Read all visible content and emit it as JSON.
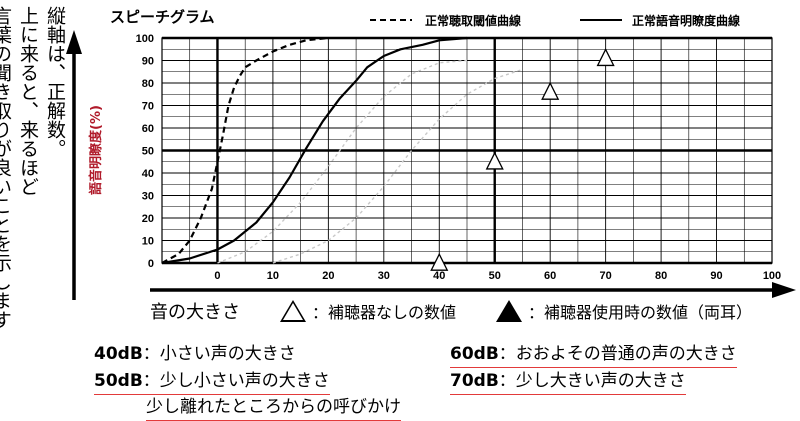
{
  "side_note": {
    "line1": "縦軸は、正解数。",
    "line2": "上に来ると、来るほど",
    "line3": "言葉の聞き取りが良いことを示します"
  },
  "chart_data": {
    "type": "line",
    "title": "スピーチグラム",
    "ylabel": "語音明瞭度(%)",
    "xlabel": "音の大きさ",
    "xlim": [
      -10,
      100
    ],
    "ylim": [
      0,
      100
    ],
    "x_ticks": [
      0,
      10,
      20,
      30,
      40,
      50,
      60,
      70,
      80,
      90,
      100
    ],
    "y_ticks": [
      0,
      10,
      20,
      30,
      40,
      50,
      60,
      70,
      80,
      90,
      100
    ],
    "grid": true,
    "legend_position": "top",
    "series": [
      {
        "name": "正常聴取閾値曲線",
        "style": "dashed",
        "points": [
          [
            -10,
            0
          ],
          [
            -7,
            4
          ],
          [
            -5,
            10
          ],
          [
            -3,
            20
          ],
          [
            -1,
            33
          ],
          [
            0,
            45
          ],
          [
            1,
            57
          ],
          [
            2,
            70
          ],
          [
            3,
            78
          ],
          [
            4,
            83
          ],
          [
            5,
            87
          ],
          [
            7,
            90
          ],
          [
            10,
            94
          ],
          [
            13,
            97
          ],
          [
            16,
            99
          ],
          [
            20,
            100
          ]
        ]
      },
      {
        "name": "正常語音明瞭度曲線",
        "style": "solid",
        "points": [
          [
            -10,
            0
          ],
          [
            -5,
            2
          ],
          [
            0,
            6
          ],
          [
            3,
            10
          ],
          [
            7,
            18
          ],
          [
            10,
            27
          ],
          [
            13,
            38
          ],
          [
            16,
            51
          ],
          [
            19,
            63
          ],
          [
            22,
            73
          ],
          [
            25,
            81
          ],
          [
            27,
            87
          ],
          [
            30,
            92
          ],
          [
            33,
            95
          ],
          [
            37,
            97
          ],
          [
            40,
            99
          ],
          [
            45,
            100
          ]
        ]
      },
      {
        "name": "",
        "style": "faint",
        "points": [
          [
            0,
            0
          ],
          [
            5,
            5
          ],
          [
            10,
            14
          ],
          [
            15,
            27
          ],
          [
            20,
            43
          ],
          [
            25,
            60
          ],
          [
            30,
            74
          ],
          [
            35,
            84
          ],
          [
            40,
            89
          ],
          [
            45,
            90
          ]
        ]
      },
      {
        "name": "",
        "style": "faint",
        "points": [
          [
            10,
            0
          ],
          [
            15,
            4
          ],
          [
            20,
            10
          ],
          [
            25,
            20
          ],
          [
            30,
            34
          ],
          [
            35,
            50
          ],
          [
            40,
            64
          ],
          [
            45,
            75
          ],
          [
            50,
            82
          ],
          [
            55,
            86
          ]
        ]
      }
    ],
    "markers": [
      {
        "type": "outline-triangle",
        "x": 40,
        "y": 0
      },
      {
        "type": "outline-triangle",
        "x": 50,
        "y": 45
      },
      {
        "type": "outline-triangle",
        "x": 60,
        "y": 76
      },
      {
        "type": "outline-triangle",
        "x": 70,
        "y": 91
      }
    ],
    "colors": {
      "line": "#000000",
      "faint": "#c8c8c8",
      "grid": "#000000",
      "underline": "#e23a3a"
    }
  },
  "legend": {
    "outline_label": "：補聴器なしの数値",
    "filled_label": "：補聴器使用時の数値（両耳）"
  },
  "db_labels": [
    {
      "db": "40dB",
      "text": "：小さい声の大きさ"
    },
    {
      "db": "50dB",
      "text": "：少し小さい声の大きさ",
      "cont": "少し離れたところからの呼びかけ"
    },
    {
      "db": "60dB",
      "text": "：おおよその普通の声の大きさ"
    },
    {
      "db": "70dB",
      "text": "：少し大きい声の大きさ"
    }
  ]
}
